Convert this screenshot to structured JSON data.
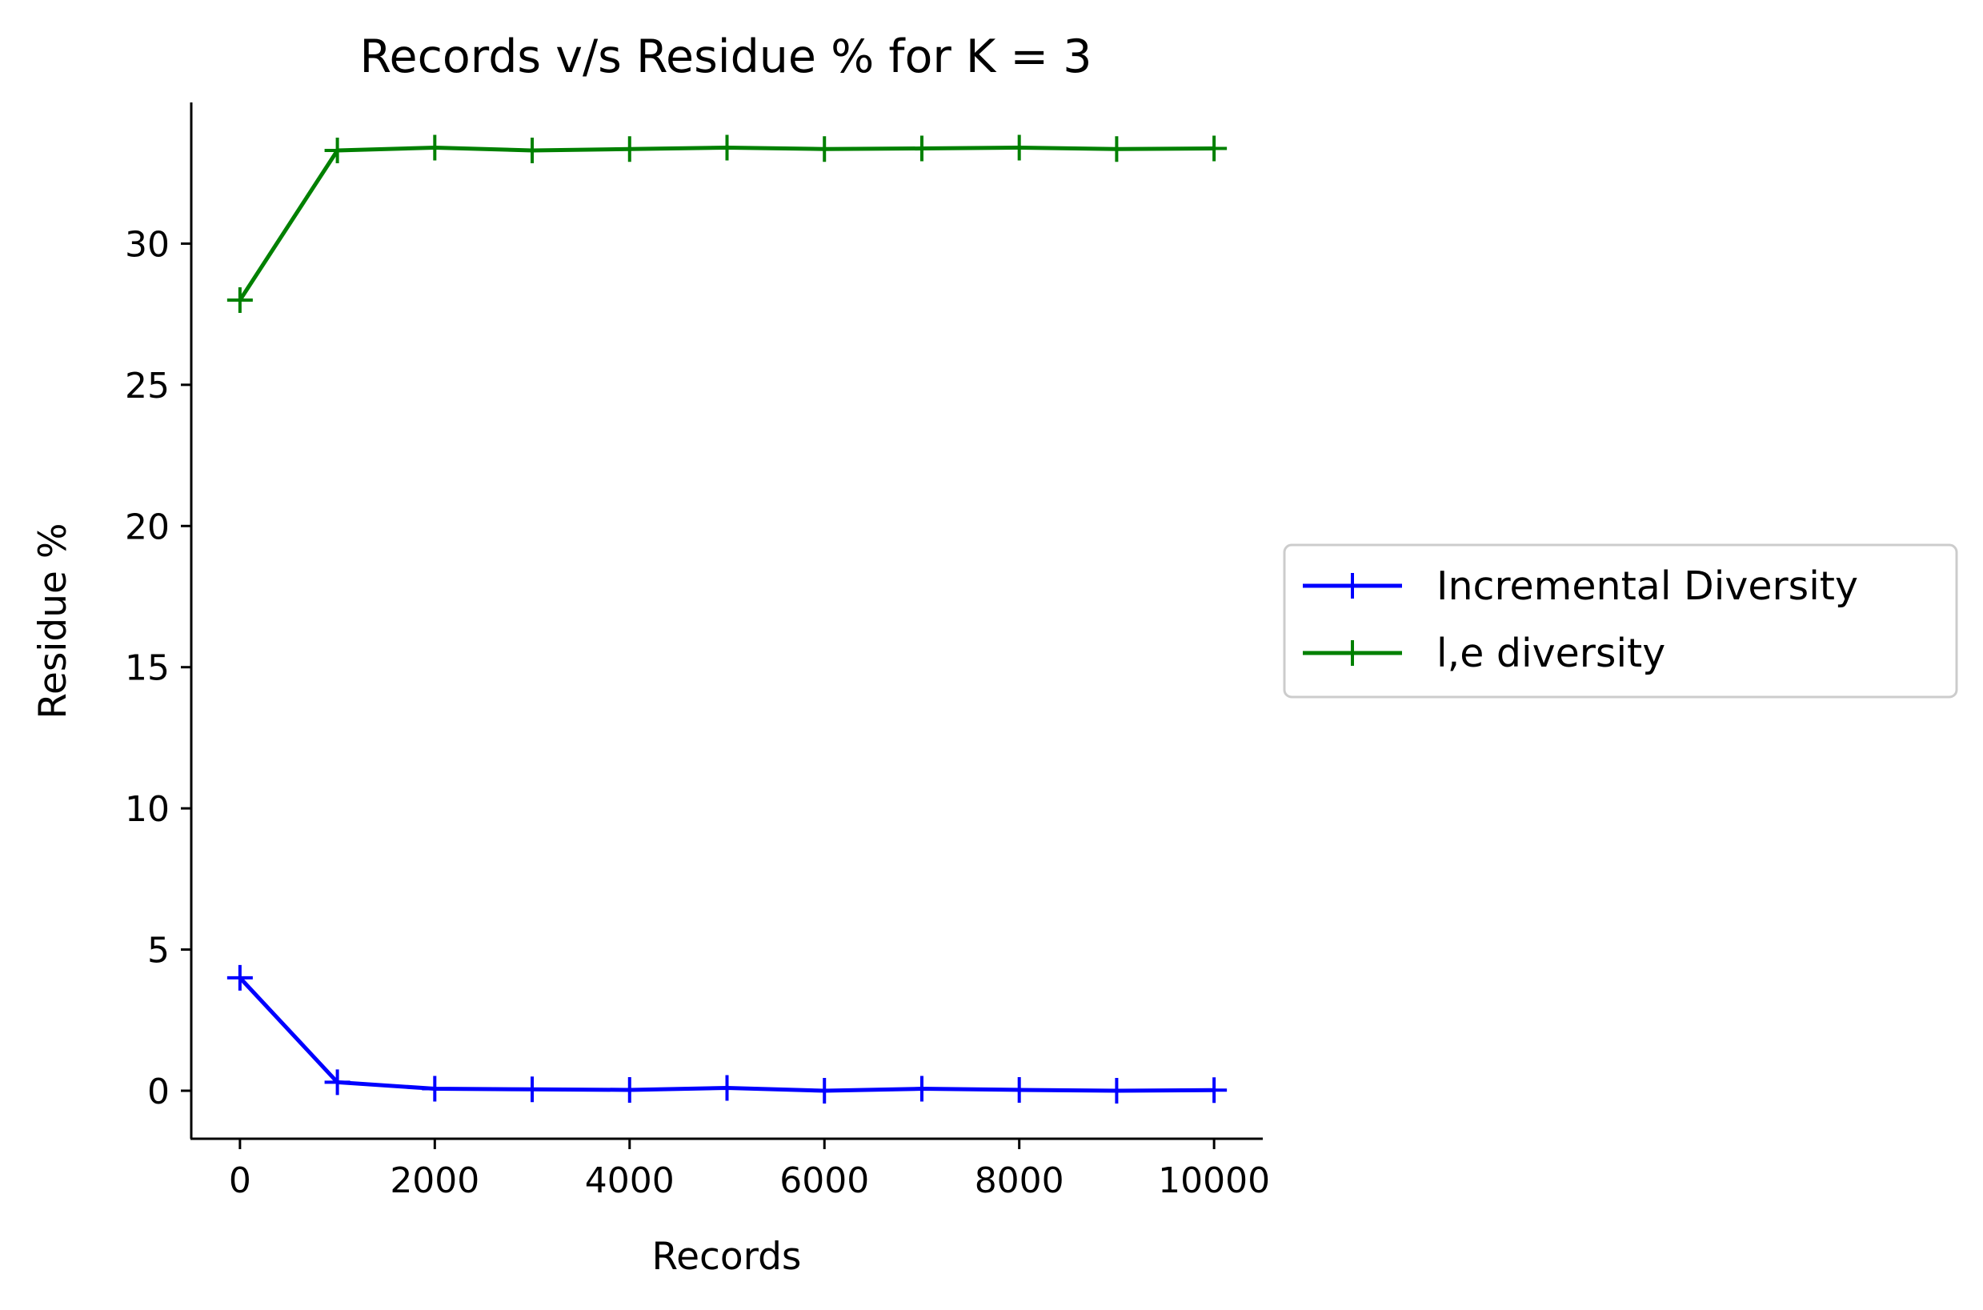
{
  "chart_data": {
    "type": "line",
    "title": "Records v/s Residue % for K = 3",
    "xlabel": "Records",
    "ylabel": "Residue %",
    "xlim": [
      -500,
      10500
    ],
    "ylim": [
      -1.7,
      35
    ],
    "xticks": [
      0,
      2000,
      4000,
      6000,
      8000,
      10000
    ],
    "yticks": [
      0,
      5,
      10,
      15,
      20,
      25,
      30
    ],
    "x": [
      0,
      1000,
      2000,
      3000,
      4000,
      5000,
      6000,
      7000,
      8000,
      9000,
      10000
    ],
    "series": [
      {
        "name": "Incremental Diversity",
        "color": "#0000ff",
        "marker": "plus",
        "values": [
          4.0,
          0.3,
          0.07,
          0.05,
          0.03,
          0.1,
          0.0,
          0.07,
          0.03,
          0.0,
          0.02
        ]
      },
      {
        "name": "l,e diversity",
        "color": "#008000",
        "marker": "plus",
        "values": [
          28.0,
          33.3,
          33.4,
          33.3,
          33.35,
          33.4,
          33.35,
          33.37,
          33.4,
          33.35,
          33.37
        ]
      }
    ],
    "grid": false,
    "legend_position": "right-outside-center"
  }
}
